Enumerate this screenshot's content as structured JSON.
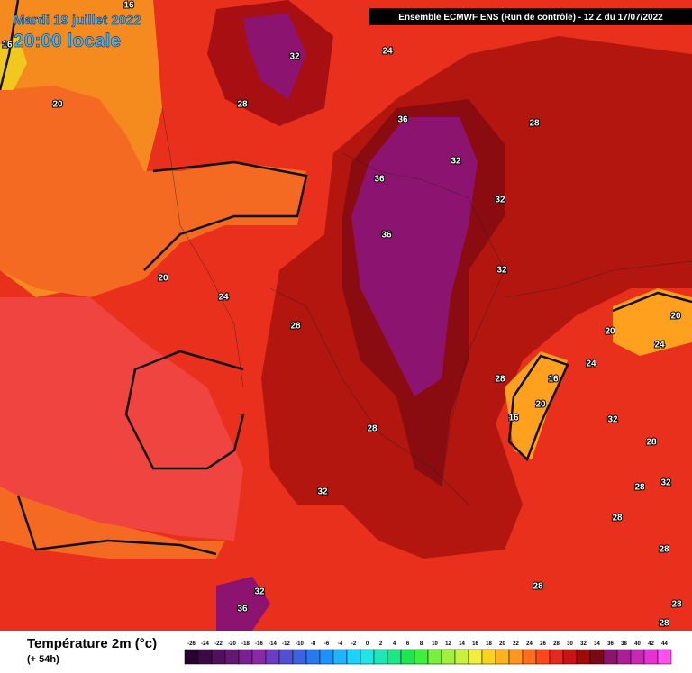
{
  "header": {
    "date": "Mardi 19 juillet 2022",
    "time": "20:00 locale",
    "run": "Ensemble ECMWF ENS  (Run de contrôle)  -  12 Z du 17/07/2022"
  },
  "legend": {
    "title": "Température 2m (°c)",
    "lead": "(+ 54h)"
  },
  "colorbar": {
    "values": [
      -26,
      -24,
      -22,
      -20,
      -18,
      -16,
      -14,
      -12,
      -10,
      -8,
      -6,
      -4,
      -2,
      0,
      2,
      4,
      6,
      8,
      10,
      12,
      14,
      16,
      18,
      20,
      22,
      24,
      26,
      28,
      30,
      32,
      34,
      36,
      38,
      40,
      42,
      44
    ],
    "colors": [
      "#2a0030",
      "#3a0a45",
      "#50105a",
      "#641873",
      "#7a2090",
      "#8c28a8",
      "#6e3cc0",
      "#5050d0",
      "#3c64e0",
      "#2878f0",
      "#1e90ff",
      "#1eb4ff",
      "#1ed2ff",
      "#1ee6e6",
      "#1ee6b4",
      "#1ee682",
      "#1ee650",
      "#3cf03c",
      "#78f03c",
      "#a0f03c",
      "#c8f03c",
      "#f0f03c",
      "#ffd21e",
      "#ffb41e",
      "#ff961e",
      "#ff6e1e",
      "#ff461e",
      "#e6281e",
      "#c81414",
      "#a00a0a",
      "#780a14",
      "#8c146e",
      "#aa1e96",
      "#c828b4",
      "#e632d2",
      "#ff50f0"
    ]
  },
  "contour_labels": [
    16,
    16,
    32,
    24,
    20,
    28,
    36,
    28,
    32,
    36,
    32,
    36,
    32,
    20,
    24,
    28,
    20,
    20,
    24,
    24,
    16,
    28,
    20,
    16,
    32,
    28,
    28,
    32,
    32,
    28,
    28,
    28,
    32,
    28,
    36,
    28,
    28
  ]
}
